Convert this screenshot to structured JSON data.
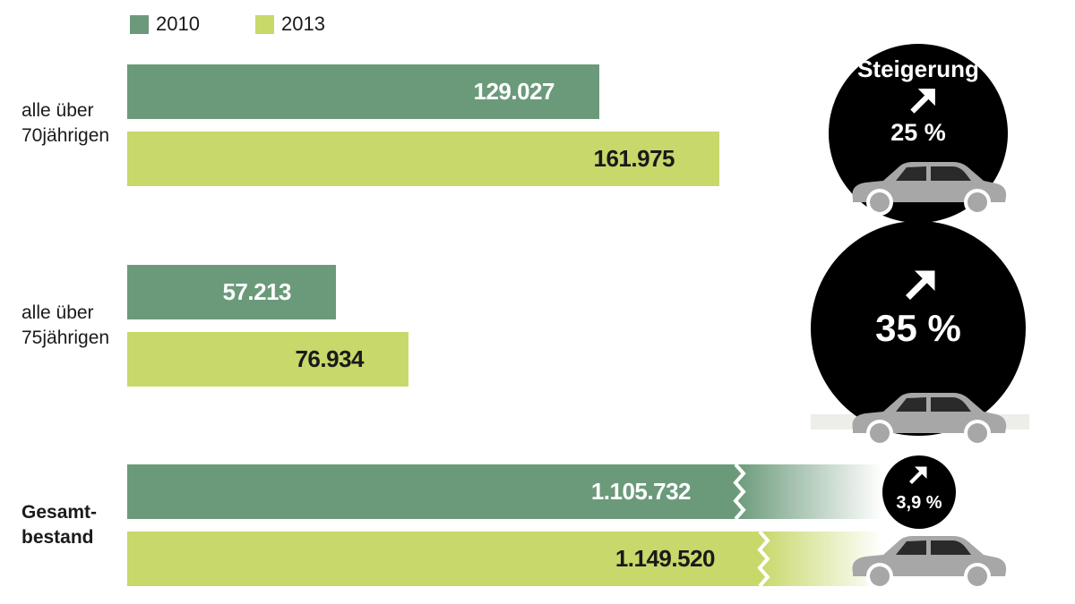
{
  "legend": [
    {
      "label": "2010",
      "color": "#6b9a7a"
    },
    {
      "label": "2013",
      "color": "#c8d86a"
    }
  ],
  "colors": {
    "series_2010": "#6b9a7a",
    "series_2013": "#c8d86a",
    "badge": "#000000",
    "car": "#a7a7a7"
  },
  "groups": [
    {
      "label_line1": "alle über",
      "label_line2": "70jährigen",
      "increase_label": "Steigerung",
      "increase": "25 %"
    },
    {
      "label_line1": "alle über",
      "label_line2": "75jährigen",
      "increase_label": "",
      "increase": "35 %"
    },
    {
      "label_line1": "Gesamt-",
      "label_line2": "bestand",
      "increase_label": "",
      "increase": "3,9 %"
    }
  ],
  "chart_data": {
    "type": "bar",
    "orientation": "horizontal",
    "categories": [
      "alle über 70jährigen",
      "alle über 75jährigen",
      "Gesamtbestand"
    ],
    "series": [
      {
        "name": "2010",
        "values": [
          129027,
          57213,
          1105732
        ],
        "labels": [
          "129.027",
          "57.213",
          "1.105.732"
        ]
      },
      {
        "name": "2013",
        "values": [
          161975,
          76934,
          1149520
        ],
        "labels": [
          "161.975",
          "76.934",
          "1.149.520"
        ]
      }
    ],
    "increase_percent": [
      25,
      35,
      3.9
    ],
    "axis_break_on": "Gesamtbestand",
    "legend_position": "top-left",
    "grid": false
  }
}
